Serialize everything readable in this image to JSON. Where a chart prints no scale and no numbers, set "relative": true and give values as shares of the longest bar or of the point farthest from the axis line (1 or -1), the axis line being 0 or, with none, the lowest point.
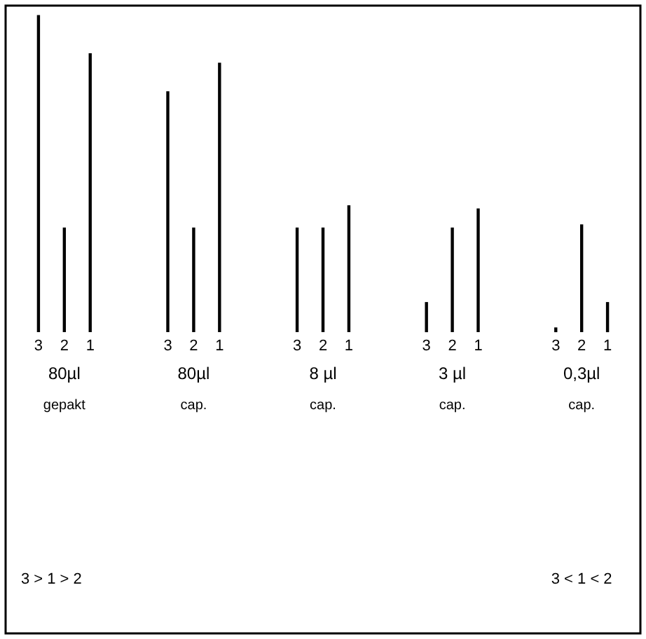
{
  "chart_data": {
    "type": "bar",
    "relative": true,
    "categories": [
      "3",
      "2",
      "1",
      null,
      null,
      "3",
      "2",
      "1",
      null,
      null,
      "3",
      "2",
      "1",
      null,
      null,
      "3",
      "2",
      "1",
      null,
      null,
      "3",
      "2",
      "1"
    ],
    "values": [
      1.0,
      0.33,
      0.88,
      null,
      null,
      0.76,
      0.33,
      0.85,
      null,
      null,
      0.33,
      0.33,
      0.4,
      null,
      null,
      0.095,
      0.33,
      0.39,
      null,
      null,
      0.015,
      0.34,
      0.095
    ],
    "color": "#000000",
    "annotations": [
      "80µl",
      "gepakt",
      "80µl",
      "cap.",
      "8 µl",
      "cap.",
      "3 µl",
      "cap.",
      "0,3µl",
      "cap.",
      "3 > 1 > 2",
      "3 < 1 < 2"
    ]
  }
}
